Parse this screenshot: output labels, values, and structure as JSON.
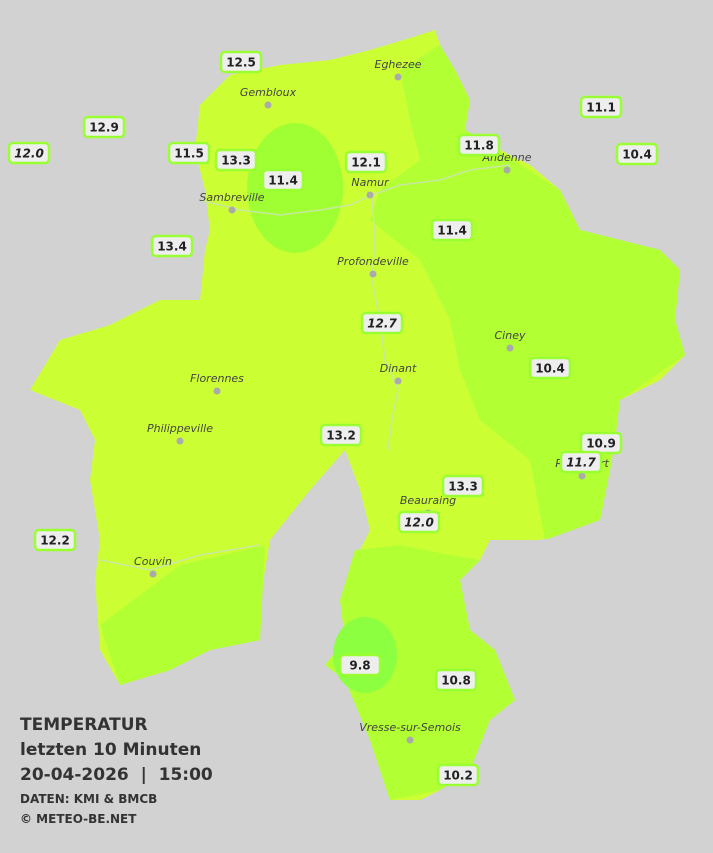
{
  "caption": {
    "title": "TEMPERATUR",
    "line1": "letzten 10 Minuten",
    "line2": "20-04-2026  |  15:00",
    "source": "DATEN: KMI & BMCB",
    "copyright": "© METEO-BE.NET"
  },
  "cities": [
    "Eghezee",
    "Gembloux",
    "Andenne",
    "Namur",
    "Sambreville",
    "Profondeville",
    "Ciney",
    "Florennes",
    "Dinant",
    "Philippeville",
    "Rochefort",
    "Beauraing",
    "Couvin",
    "Vresse-sur-Semois"
  ],
  "stations": [
    {
      "label": "12.5"
    },
    {
      "label": "12.9"
    },
    {
      "label": "12.0",
      "italic": true
    },
    {
      "label": "11.5"
    },
    {
      "label": "13.3"
    },
    {
      "label": "11.4"
    },
    {
      "label": "12.1"
    },
    {
      "label": "11.8"
    },
    {
      "label": "11.1"
    },
    {
      "label": "10.4"
    },
    {
      "label": "13.4"
    },
    {
      "label": "11.4"
    },
    {
      "label": "12.7",
      "italic": true
    },
    {
      "label": "10.4"
    },
    {
      "label": "13.2"
    },
    {
      "label": "10.9"
    },
    {
      "label": "11.7",
      "italic": true
    },
    {
      "label": "13.3"
    },
    {
      "label": "12.0",
      "italic": true
    },
    {
      "label": "12.2"
    },
    {
      "label": "9.8"
    },
    {
      "label": "10.8"
    },
    {
      "label": "10.2"
    }
  ]
}
